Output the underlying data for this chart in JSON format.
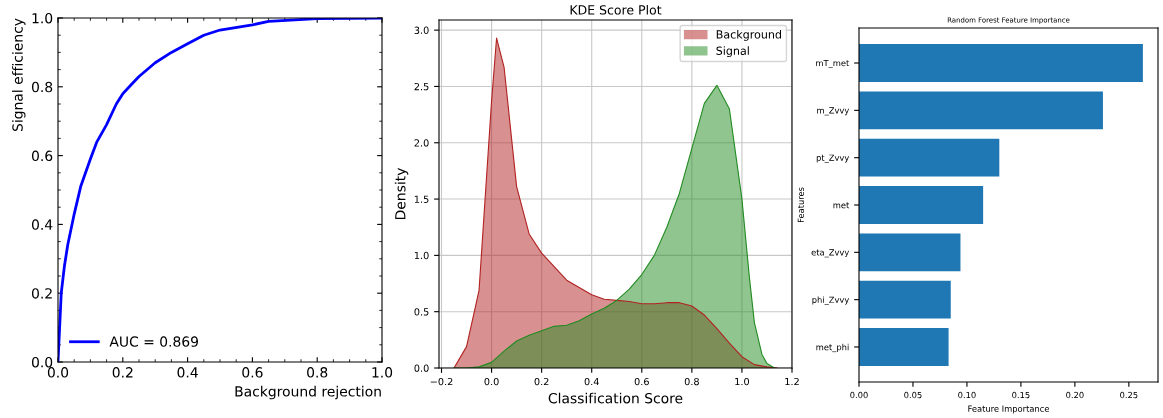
{
  "chart_data": [
    {
      "type": "line",
      "xlabel": "Background rejection",
      "ylabel": "Signal efficiency",
      "legend": "lower left",
      "line_style": "solid",
      "xlim": [
        0,
        1
      ],
      "ylim": [
        0,
        1
      ],
      "xticks": [
        {
          "value": 0,
          "label": "0.0"
        },
        {
          "value": 0.2,
          "label": "0.2"
        },
        {
          "value": 0.4,
          "label": "0.4"
        },
        {
          "value": 0.6,
          "label": "0.6"
        },
        {
          "value": 0.8,
          "label": "0.8"
        },
        {
          "value": 1,
          "label": "1.0"
        }
      ],
      "yticks": [
        {
          "value": 0,
          "label": "0.0"
        },
        {
          "value": 0.2,
          "label": "0.2"
        },
        {
          "value": 0.4,
          "label": "0.4"
        },
        {
          "value": 0.6,
          "label": "0.6"
        },
        {
          "value": 0.8,
          "label": "0.8"
        },
        {
          "value": 1,
          "label": "1.0"
        }
      ],
      "series": [
        {
          "name": "AUC = 0.869",
          "color": "#0000ff",
          "x": [
            0,
            0.005,
            0.01,
            0.02,
            0.03,
            0.05,
            0.07,
            0.1,
            0.12,
            0.15,
            0.18,
            0.2,
            0.22,
            0.25,
            0.3,
            0.35,
            0.4,
            0.45,
            0.5,
            0.6,
            0.65,
            0.8,
            1.0
          ],
          "values": [
            0,
            0.1,
            0.2,
            0.28,
            0.34,
            0.43,
            0.51,
            0.59,
            0.64,
            0.69,
            0.75,
            0.78,
            0.8,
            0.83,
            0.87,
            0.9,
            0.925,
            0.95,
            0.965,
            0.98,
            0.99,
            0.998,
            1.0
          ]
        }
      ]
    },
    {
      "type": "area",
      "title": "KDE Score Plot",
      "xlabel": "Classification Score",
      "ylabel": "Density",
      "legend": "upper right",
      "grid": true,
      "xlim": [
        -0.21,
        1.2
      ],
      "ylim": [
        0,
        3.09
      ],
      "xticks": [
        {
          "value": -0.2,
          "label": "−0.2"
        },
        {
          "value": 0,
          "label": "0.0"
        },
        {
          "value": 0.2,
          "label": "0.2"
        },
        {
          "value": 0.4,
          "label": "0.4"
        },
        {
          "value": 0.6,
          "label": "0.6"
        },
        {
          "value": 0.8,
          "label": "0.8"
        },
        {
          "value": 1,
          "label": "1.0"
        },
        {
          "value": 1.2,
          "label": "1.2"
        }
      ],
      "yticks": [
        {
          "value": 0,
          "label": "0.0"
        },
        {
          "value": 0.5,
          "label": "0.5"
        },
        {
          "value": 1,
          "label": "1.0"
        },
        {
          "value": 1.5,
          "label": "1.5"
        },
        {
          "value": 2,
          "label": "2.0"
        },
        {
          "value": 2.5,
          "label": "2.5"
        },
        {
          "value": 3,
          "label": "3.0"
        }
      ],
      "series": [
        {
          "name": "Background",
          "color": "#b22222",
          "x": [
            -0.15,
            -0.1,
            -0.05,
            0.0,
            0.02,
            0.05,
            0.1,
            0.15,
            0.2,
            0.3,
            0.4,
            0.45,
            0.5,
            0.55,
            0.6,
            0.65,
            0.7,
            0.75,
            0.8,
            0.85,
            0.9,
            0.95,
            1.0,
            1.05,
            1.1,
            1.14
          ],
          "values": [
            0,
            0.19,
            0.69,
            2.37,
            2.93,
            2.67,
            1.61,
            1.19,
            1.02,
            0.78,
            0.65,
            0.61,
            0.6,
            0.59,
            0.57,
            0.57,
            0.58,
            0.58,
            0.55,
            0.47,
            0.35,
            0.22,
            0.1,
            0.03,
            0.01,
            0
          ]
        },
        {
          "name": "Signal",
          "color": "#228b22",
          "x": [
            -0.15,
            -0.1,
            -0.05,
            0.0,
            0.05,
            0.1,
            0.15,
            0.2,
            0.25,
            0.3,
            0.35,
            0.4,
            0.45,
            0.5,
            0.55,
            0.6,
            0.65,
            0.7,
            0.75,
            0.8,
            0.85,
            0.9,
            0.95,
            1.0,
            1.03,
            1.05,
            1.08,
            1.1,
            1.13
          ],
          "values": [
            0,
            0.0,
            0.01,
            0.05,
            0.15,
            0.24,
            0.29,
            0.33,
            0.37,
            0.38,
            0.42,
            0.48,
            0.53,
            0.6,
            0.7,
            0.83,
            1.0,
            1.25,
            1.55,
            1.95,
            2.35,
            2.51,
            2.3,
            1.5,
            0.8,
            0.4,
            0.12,
            0.04,
            0
          ]
        }
      ]
    },
    {
      "type": "bar",
      "orientation": "horizontal",
      "title": "Random Forest Feature Importance",
      "xlabel": "Feature Importance",
      "ylabel": "Features",
      "categories": [
        "mT_met",
        "m_Zvvy",
        "pt_Zvvy",
        "met",
        "eta_Zvvy",
        "phi_Zvvy",
        "met_phi"
      ],
      "values": [
        0.263,
        0.226,
        0.13,
        0.115,
        0.094,
        0.085,
        0.083
      ],
      "color": "#1f77b4",
      "xlim": [
        0,
        0.277
      ],
      "xticks": [
        {
          "value": 0,
          "label": "0.00"
        },
        {
          "value": 0.05,
          "label": "0.05"
        },
        {
          "value": 0.1,
          "label": "0.10"
        },
        {
          "value": 0.15,
          "label": "0.15"
        },
        {
          "value": 0.2,
          "label": "0.20"
        },
        {
          "value": 0.25,
          "label": "0.25"
        }
      ]
    }
  ]
}
